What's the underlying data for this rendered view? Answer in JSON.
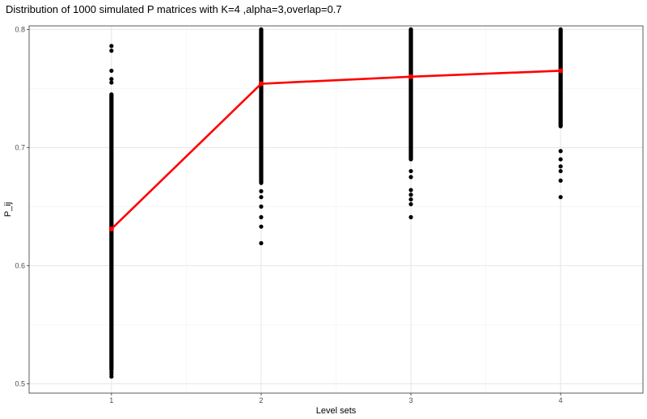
{
  "chart_data": {
    "type": "scatter",
    "title": "Distribution of 1000 simulated P matrices with K=4 ,alpha=3,overlap=0.7",
    "xlabel": "Level sets",
    "ylabel": "P_ij",
    "x_ticks": [
      "1",
      "2",
      "3",
      "4"
    ],
    "y_ticks": [
      "0.5",
      "0.6",
      "0.7",
      "0.8"
    ],
    "xlim": [
      0.45,
      4.55
    ],
    "ylim": [
      0.492,
      0.803
    ],
    "grid": true,
    "point_color": "#000000",
    "mean_color": "#ff0000",
    "series": [
      {
        "x": 1,
        "dense_range": [
          0.512,
          0.745
        ],
        "outliers": [
          0.506,
          0.508,
          0.51,
          0.755,
          0.758,
          0.765,
          0.782,
          0.786
        ]
      },
      {
        "x": 2,
        "dense_range": [
          0.67,
          0.8
        ],
        "outliers": [
          0.619,
          0.633,
          0.641,
          0.65,
          0.658,
          0.663
        ]
      },
      {
        "x": 3,
        "dense_range": [
          0.69,
          0.8
        ],
        "outliers": [
          0.641,
          0.652,
          0.656,
          0.66,
          0.664,
          0.675,
          0.68
        ]
      },
      {
        "x": 4,
        "dense_range": [
          0.718,
          0.8
        ],
        "outliers": [
          0.658,
          0.672,
          0.68,
          0.684,
          0.69,
          0.697
        ]
      }
    ],
    "mean_line": {
      "x": [
        1,
        2,
        3,
        4
      ],
      "y": [
        0.631,
        0.754,
        0.76,
        0.765
      ]
    }
  }
}
